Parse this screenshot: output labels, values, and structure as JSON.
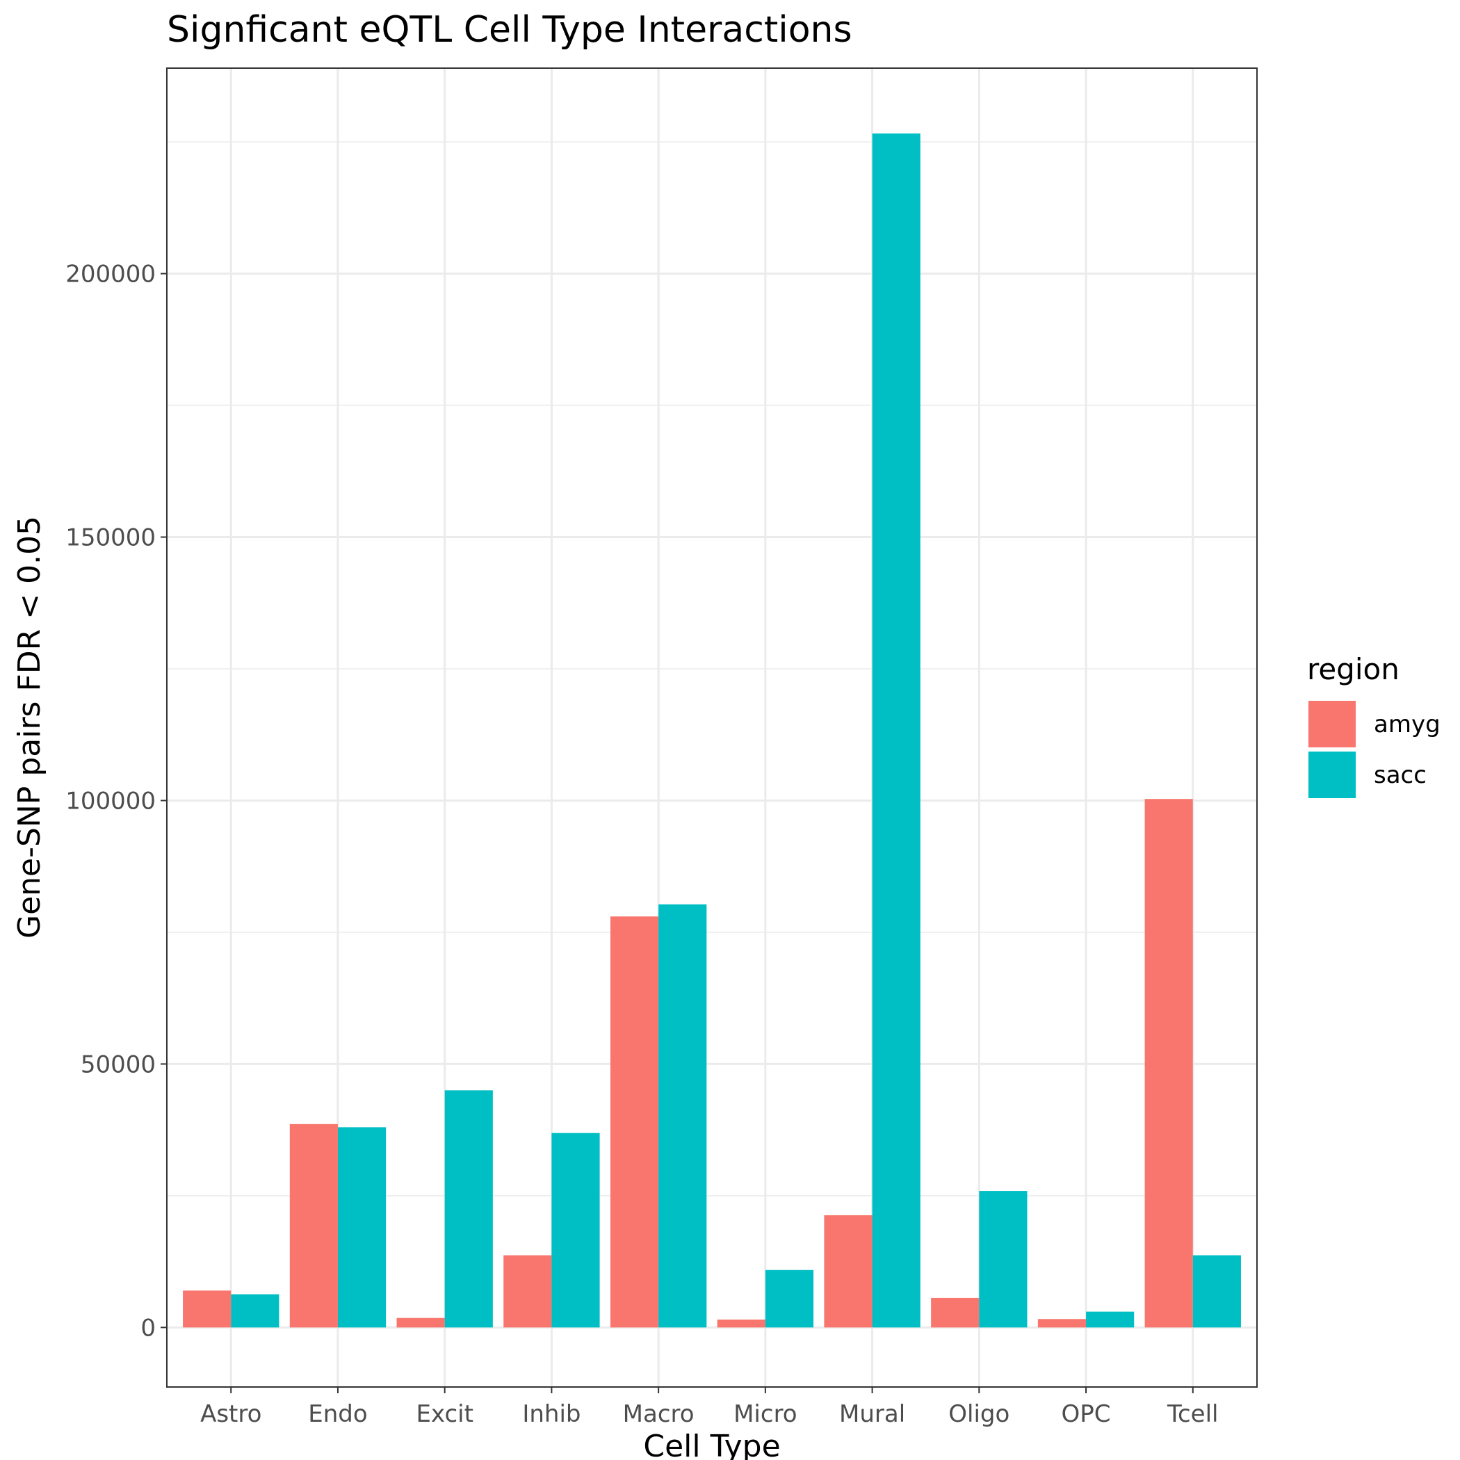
{
  "chart_data": {
    "type": "bar",
    "title": "Signficant eQTL Cell Type Interactions",
    "xlabel": "Cell Type",
    "ylabel": "Gene-SNP pairs FDR < 0.05",
    "categories": [
      "Astro",
      "Endo",
      "Excit",
      "Inhib",
      "Macro",
      "Micro",
      "Mural",
      "Oligo",
      "OPC",
      "Tcell"
    ],
    "series": [
      {
        "name": "amyg",
        "color": "#F8766D",
        "values": [
          7000,
          38600,
          1800,
          13700,
          78000,
          1500,
          21300,
          5600,
          1600,
          100300
        ]
      },
      {
        "name": "sacc",
        "color": "#00BFC4",
        "values": [
          6300,
          38000,
          45000,
          36900,
          80300,
          10900,
          226600,
          25900,
          3000,
          13700
        ]
      }
    ],
    "ylim": [
      -11300,
      239000
    ],
    "yticks": [
      0,
      50000,
      100000,
      150000,
      200000
    ],
    "ytick_labels": [
      "0",
      "50000",
      "100000",
      "150000",
      "200000"
    ],
    "grid": true,
    "legend": {
      "title": "region",
      "position": "right"
    }
  }
}
